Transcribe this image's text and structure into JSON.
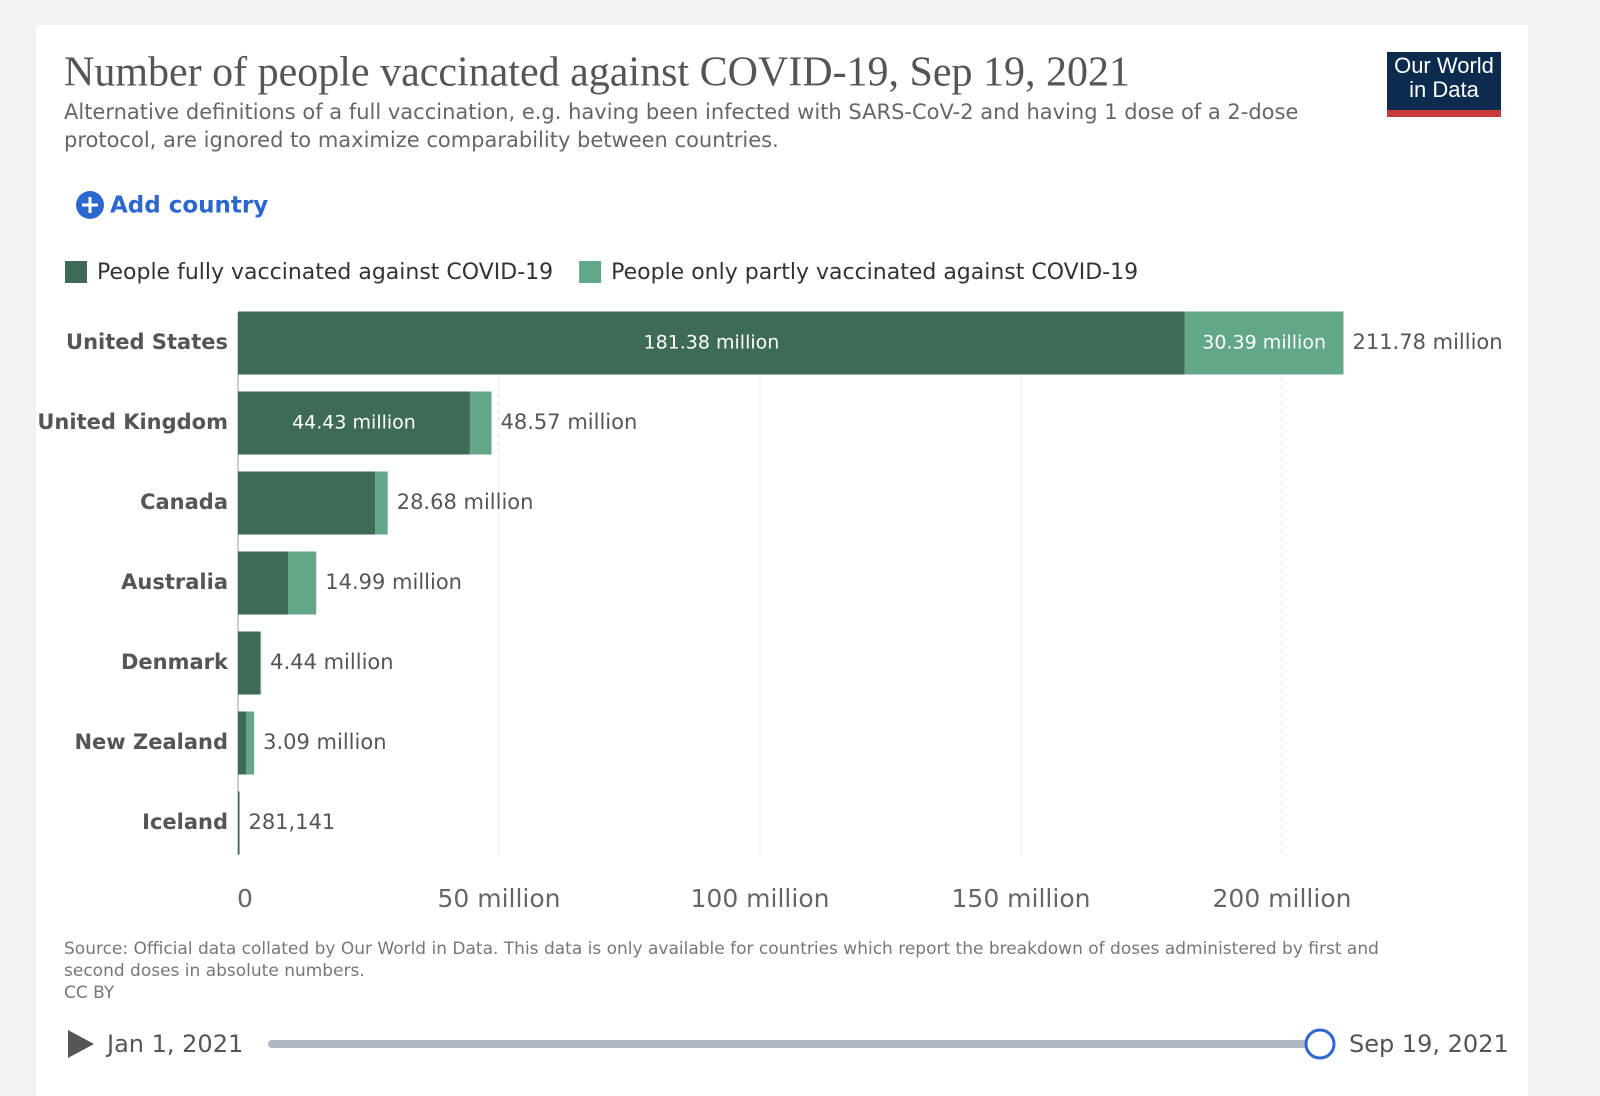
{
  "chart_data": {
    "type": "stacked-bar-horizontal",
    "title": "Number of people vaccinated against COVID-19, Sep 19, 2021",
    "subtitle": "Alternative definitions of a full vaccination, e.g. having been infected with SARS-CoV-2 and having 1 dose of a 2-dose protocol, are ignored to maximize comparability between countries.",
    "categories": [
      "United States",
      "United Kingdom",
      "Canada",
      "Australia",
      "Denmark",
      "New Zealand",
      "Iceland"
    ],
    "series": [
      {
        "name": "People fully vaccinated against COVID-19",
        "color": "#3e6b55",
        "values": [
          181384000,
          44430000,
          26250000,
          9580000,
          4240000,
          1530000,
          270000
        ],
        "value_labels": [
          "181.38 million",
          "44.43 million",
          null,
          null,
          null,
          null,
          null
        ]
      },
      {
        "name": "People only partly vaccinated against COVID-19",
        "color": "#62a888",
        "values": [
          30394000,
          4140000,
          2430000,
          5410000,
          200000,
          1560000,
          11141
        ],
        "value_labels": [
          "30.39 million",
          null,
          null,
          null,
          null,
          null,
          null
        ]
      }
    ],
    "total_labels": [
      "211.78 million",
      "48.57 million",
      "28.68 million",
      "14.99 million",
      "4.44 million",
      "3.09 million",
      "281,141"
    ],
    "xlim": [
      0,
      220000000
    ],
    "xticks": [
      0,
      {
        "value": 50000000,
        "label": "50 million"
      },
      {
        "value": 100000000,
        "label": "100 million"
      },
      {
        "value": 150000000,
        "label": "150 million"
      },
      {
        "value": 200000000,
        "label": "200 million"
      }
    ],
    "grid": true,
    "source": "Source: Official data collated by Our World in Data. This data is only available for countries which report the breakdown of doses administered by first and second doses in absolute numbers.",
    "license": "CC BY"
  },
  "ui": {
    "logo": "Our World in Data",
    "add_country": "Add country",
    "timeline_start": "Jan 1, 2021",
    "timeline_end": "Sep 19, 2021"
  }
}
